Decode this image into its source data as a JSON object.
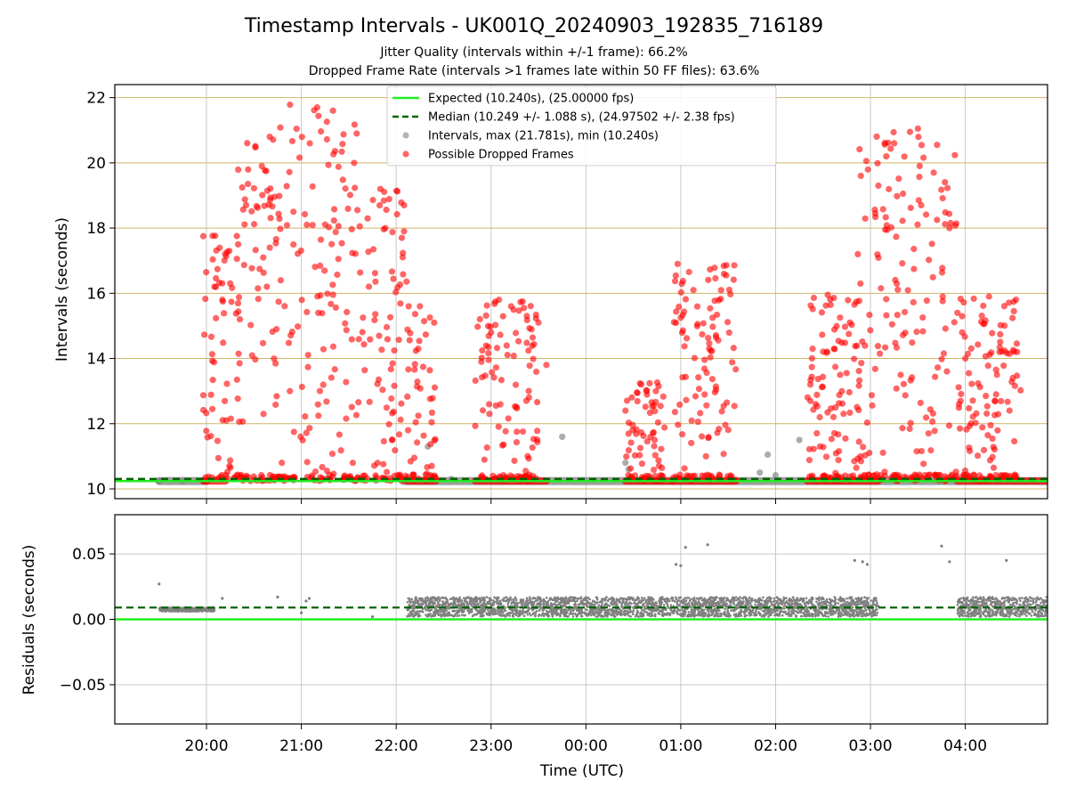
{
  "title": "Timestamp Intervals - UK001Q_20240903_192835_716189",
  "subtitle_lines": [
    "Jitter Quality (intervals within +/-1 frame): 66.2%",
    "Dropped Frame Rate (intervals >1 frames late within 50 FF files): 63.6%"
  ],
  "colors": {
    "expected": "#22ee22",
    "median": "#006400",
    "intervals": "#808080",
    "dropped": "#ff0000",
    "hgrid_top": "#d2b46a",
    "grid": "#c8c8c8"
  },
  "chart_data": [
    {
      "type": "scatter",
      "ylabel": "Intervals (seconds)",
      "ylim": [
        9.7,
        22.4
      ],
      "xlim": [
        "19:02",
        "04:52"
      ],
      "yticks": [
        10,
        12,
        14,
        16,
        18,
        20,
        22
      ],
      "ytick_labels": [
        "10",
        "12",
        "14",
        "16",
        "18",
        "20",
        "22"
      ],
      "grid": true,
      "legend_position": "top-center",
      "legend": [
        {
          "label": "Expected (10.240s), (25.00000 fps)",
          "style": "solid-line",
          "color": "expected"
        },
        {
          "label": "Median (10.249 +/- 1.088 s), (24.97502 +/- 2.38 fps)",
          "style": "dashed-line",
          "color": "median"
        },
        {
          "label": "Intervals, max (21.781s), min (10.240s)",
          "style": "marker",
          "color": "intervals"
        },
        {
          "label": "Possible Dropped Frames",
          "style": "marker",
          "color": "dropped"
        }
      ],
      "expected_value": 10.24,
      "median_value": 10.249,
      "series": [
        {
          "name": "Intervals, max (21.781s), min (10.240s)",
          "points": [
            [
              "19:30",
              10.24
            ],
            [
              "19:45",
              10.24
            ],
            [
              "22:20",
              11.3
            ],
            [
              "22:35",
              10.3
            ],
            [
              "23:45",
              11.6
            ],
            [
              "00:25",
              10.8
            ],
            [
              "00:27",
              10.6
            ],
            [
              "01:50",
              10.5
            ],
            [
              "01:55",
              11.05
            ],
            [
              "02:00",
              10.42
            ],
            [
              "02:15",
              11.5
            ],
            [
              "02:30",
              10.3
            ]
          ],
          "bands": [
            {
              "start": "19:30",
              "end": "20:00",
              "value": 10.24
            },
            {
              "start": "22:05",
              "end": "04:52",
              "value": 10.24
            }
          ]
        },
        {
          "name": "Possible Dropped Frames",
          "sample_points": [
            [
              "19:58",
              17.75
            ],
            [
              "20:05",
              16.2
            ],
            [
              "20:10",
              15.8
            ],
            [
              "20:15",
              16.3
            ],
            [
              "20:20",
              17.5
            ],
            [
              "20:25",
              18.7
            ],
            [
              "20:35",
              19.9
            ],
            [
              "20:40",
              20.8
            ],
            [
              "20:55",
              18.5
            ],
            [
              "21:10",
              21.7
            ],
            [
              "21:20",
              21.6
            ],
            [
              "21:35",
              20.9
            ],
            [
              "21:50",
              19.2
            ],
            [
              "22:05",
              18.7
            ],
            [
              "22:15",
              15.6
            ],
            [
              "23:00",
              14.8
            ],
            [
              "23:05",
              15.8
            ],
            [
              "23:30",
              15.1
            ],
            [
              "23:35",
              13.8
            ],
            [
              "00:25",
              12.4
            ],
            [
              "00:35",
              13.2
            ],
            [
              "00:58",
              16.9
            ],
            [
              "01:00",
              15.25
            ],
            [
              "01:08",
              16.1
            ],
            [
              "01:18",
              14.3
            ],
            [
              "02:22",
              13.2
            ],
            [
              "02:33",
              15.95
            ],
            [
              "02:47",
              15.1
            ],
            [
              "02:52",
              17.2
            ],
            [
              "03:05",
              19.3
            ],
            [
              "03:10",
              20.2
            ],
            [
              "03:15",
              20.6
            ],
            [
              "03:25",
              20.95
            ],
            [
              "03:30",
              21.05
            ],
            [
              "03:40",
              19.7
            ],
            [
              "03:50",
              18.0
            ],
            [
              "03:55",
              15.4
            ],
            [
              "04:00",
              14.0
            ],
            [
              "04:15",
              15.9
            ],
            [
              "04:20",
              13.5
            ],
            [
              "04:30",
              13.4
            ]
          ],
          "clusters": [
            {
              "start": "19:58",
              "end": "20:22",
              "ymin": 10.24,
              "ymax": 17.8
            },
            {
              "start": "20:20",
              "end": "20:45",
              "ymin": 11.8,
              "ymax": 20.8
            },
            {
              "start": "20:45",
              "end": "21:35",
              "ymin": 10.24,
              "ymax": 21.8
            },
            {
              "start": "21:35",
              "end": "22:07",
              "ymin": 10.24,
              "ymax": 19.3
            },
            {
              "start": "22:07",
              "end": "22:25",
              "ymin": 10.24,
              "ymax": 15.6
            },
            {
              "start": "22:50",
              "end": "23:30",
              "ymin": 10.24,
              "ymax": 15.8
            },
            {
              "start": "00:25",
              "end": "00:50",
              "ymin": 10.24,
              "ymax": 13.3
            },
            {
              "start": "00:55",
              "end": "01:35",
              "ymin": 10.24,
              "ymax": 16.9
            },
            {
              "start": "02:20",
              "end": "02:55",
              "ymin": 10.24,
              "ymax": 15.9
            },
            {
              "start": "02:52",
              "end": "03:55",
              "ymin": 10.24,
              "ymax": 21.0
            },
            {
              "start": "03:55",
              "end": "04:35",
              "ymin": 10.24,
              "ymax": 15.9
            }
          ],
          "bands": [
            {
              "start": "19:58",
              "end": "20:12",
              "value": 10.24
            },
            {
              "start": "22:07",
              "end": "22:25",
              "value": 10.24
            },
            {
              "start": "22:50",
              "end": "23:35",
              "value": 10.24
            },
            {
              "start": "00:25",
              "end": "00:55",
              "value": 10.24
            },
            {
              "start": "00:55",
              "end": "01:35",
              "value": 10.24
            },
            {
              "start": "02:20",
              "end": "03:05",
              "value": 10.24
            },
            {
              "start": "03:55",
              "end": "04:52",
              "value": 10.24
            }
          ]
        }
      ]
    },
    {
      "type": "scatter",
      "xlabel": "Time (UTC)",
      "ylabel": "Residuals (seconds)",
      "ylim": [
        -0.08,
        0.08
      ],
      "xlim": [
        "19:02",
        "04:52"
      ],
      "yticks": [
        0.05,
        0.0,
        -0.05
      ],
      "ytick_labels": [
        "0.05",
        "0.00",
        "−0.05"
      ],
      "xticks": [
        "20:00",
        "21:00",
        "22:00",
        "23:00",
        "00:00",
        "01:00",
        "02:00",
        "03:00",
        "04:00"
      ],
      "xtick_labels": [
        "20:00",
        "21:00",
        "22:00",
        "23:00",
        "00:00",
        "01:00",
        "02:00",
        "03:00",
        "04:00"
      ],
      "grid": true,
      "zero_line": 0.0,
      "median_line": 0.009,
      "outliers": [
        [
          "19:30",
          0.027
        ],
        [
          "20:10",
          0.016
        ],
        [
          "20:45",
          0.017
        ],
        [
          "21:03",
          0.014
        ],
        [
          "21:05",
          0.016
        ],
        [
          "21:00",
          0.005
        ],
        [
          "21:45",
          0.002
        ],
        [
          "22:10",
          0.004
        ],
        [
          "00:57",
          0.042
        ],
        [
          "01:00",
          0.041
        ],
        [
          "01:03",
          0.055
        ],
        [
          "01:17",
          0.057
        ],
        [
          "02:50",
          0.045
        ],
        [
          "02:55",
          0.044
        ],
        [
          "02:58",
          0.042
        ],
        [
          "03:45",
          0.056
        ],
        [
          "03:50",
          0.044
        ],
        [
          "04:26",
          0.045
        ]
      ],
      "bands": [
        {
          "start": "19:30",
          "end": "20:05",
          "low": 0.006,
          "high": 0.009
        },
        {
          "start": "22:07",
          "end": "22:50",
          "low": 0.002,
          "high": 0.017
        },
        {
          "start": "22:50",
          "end": "03:05",
          "low": 0.002,
          "high": 0.017
        },
        {
          "start": "03:55",
          "end": "04:52",
          "low": 0.002,
          "high": 0.017
        }
      ]
    }
  ]
}
